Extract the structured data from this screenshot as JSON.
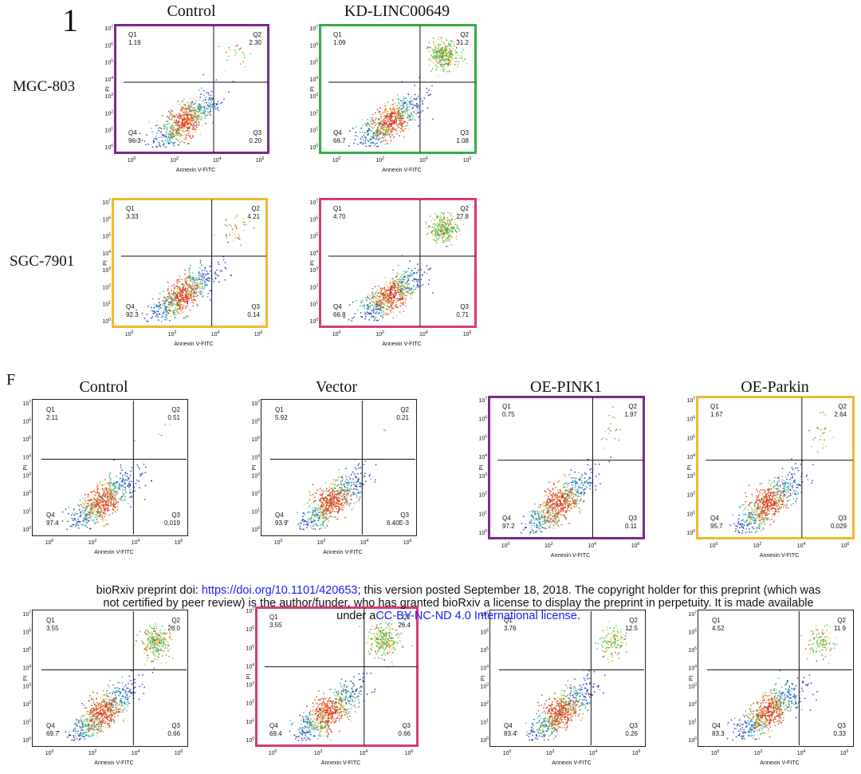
{
  "panels": {
    "top_letter": "1",
    "bottom_letter": "F"
  },
  "top_group": {
    "rows": [
      "MGC-803",
      "SGC-7901"
    ],
    "cols": [
      "Control",
      "KD-LINC00649"
    ],
    "plots": [
      {
        "q1": "1.19",
        "q2": "2.30",
        "q3": "0.20",
        "q4": "96.3",
        "border": "#7a2a8a"
      },
      {
        "q1": "1.09",
        "q2": "31.2",
        "q3": "1.08",
        "q4": "66.7",
        "border": "#3aaa48"
      },
      {
        "q1": "3.33",
        "q2": "4.21",
        "q3": "0.14",
        "q4": "92.3",
        "border": "#f0b830"
      },
      {
        "q1": "4.70",
        "q2": "27.8",
        "q3": "0.71",
        "q4": "66.8",
        "border": "#d63c7a"
      }
    ]
  },
  "bottom_group": {
    "cols": [
      "Control",
      "Vector",
      "OE-PINK1",
      "OE-Parkin"
    ],
    "plots": [
      {
        "q1": "2.11",
        "q2": "0.51",
        "q3": "0.019",
        "q4": "97.4",
        "border": ""
      },
      {
        "q1": "5.92",
        "q2": "0.21",
        "q3": "6.40E-3",
        "q4": "93.9",
        "border": ""
      },
      {
        "q1": "0.75",
        "q2": "1.97",
        "q3": "0.11",
        "q4": "97.2",
        "border": "#7a2a8a"
      },
      {
        "q1": "1.67",
        "q2": "2.64",
        "q3": "0.029",
        "q4": "95.7",
        "border": "#f0b830"
      },
      {
        "q1": "3.55",
        "q2": "26.0",
        "q3": "0.66",
        "q4": "69.7",
        "border": ""
      },
      {
        "q1": "3.55",
        "q2": "26.4",
        "q3": "0.66",
        "q4": "69.4",
        "border": "#d63c7a"
      },
      {
        "q1": "3.76",
        "q2": "12.5",
        "q3": "0.26",
        "q4": "83.4",
        "border": ""
      },
      {
        "q1": "4.52",
        "q2": "11.9",
        "q3": "0.33",
        "q4": "83.3",
        "border": ""
      }
    ]
  },
  "axes": {
    "x_label": "Annexin V-FITC",
    "y_label": "PI",
    "quadrants": [
      "Q1",
      "Q2",
      "Q3",
      "Q4"
    ]
  },
  "footer": {
    "line1_a": "bioRxiv preprint doi: ",
    "doi_link": "https://doi.org/10.1101/420653",
    "line1_b": "; this version posted September 18, 2018. The copyright holder for this preprint (which was",
    "line2": "not certified by peer review) is the author/funder, who has granted bioRxiv a license to display the preprint in perpetuity. It is made available",
    "line3_a": "under a",
    "license_link": "CC-BY-NC-ND 4.0 International license",
    "line3_b": "."
  }
}
